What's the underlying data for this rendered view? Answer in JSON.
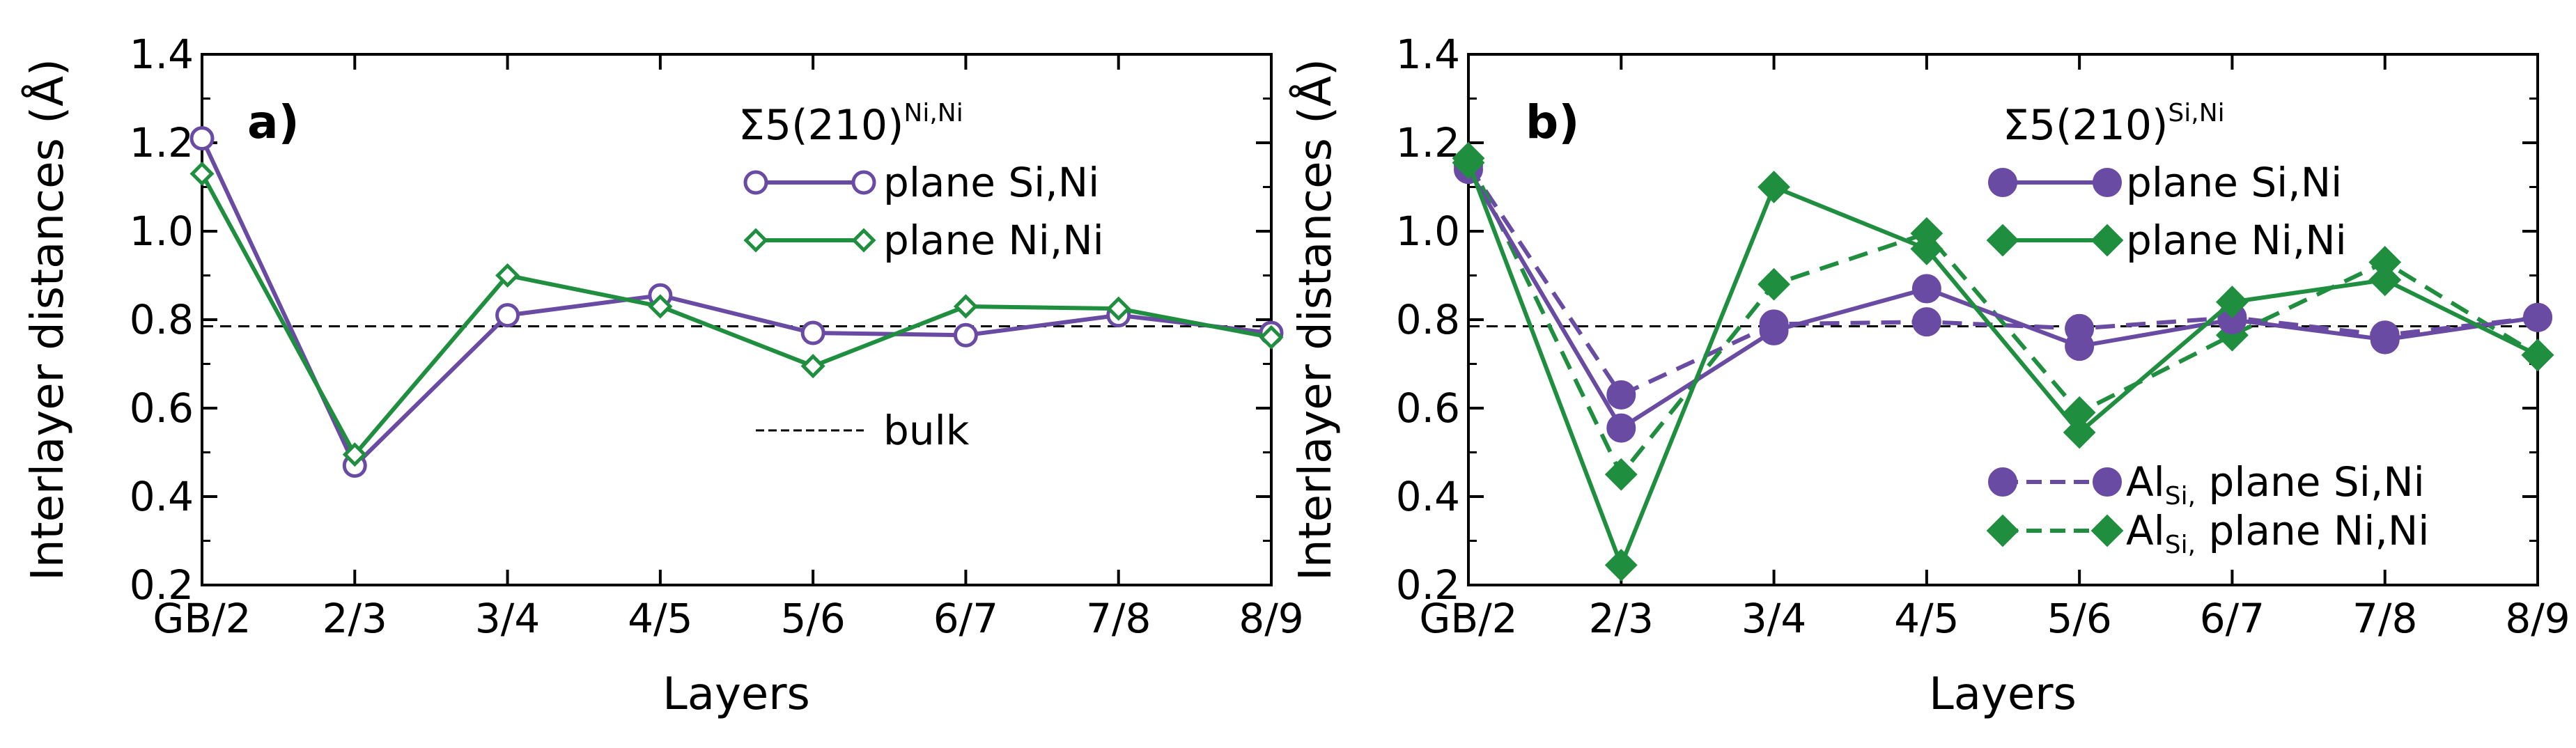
{
  "chart_data": [
    {
      "type": "line",
      "panel_label": "a)",
      "categories": [
        "GB/2",
        "2/3",
        "3/4",
        "4/5",
        "5/6",
        "6/7",
        "7/8",
        "8/9"
      ],
      "xlabel": "Layers",
      "ylabel": "Interlayer distances (Å)",
      "ylim": [
        0.2,
        1.4
      ],
      "yticks": [
        "0.2",
        "0.4",
        "0.6",
        "0.8",
        "1.0",
        "1.2",
        "1.4"
      ],
      "legend": {
        "title_base": "Σ5(210)",
        "title_sup": "Ni,Ni",
        "placement": "top-right"
      },
      "series": [
        {
          "name": "plane Si,Ni",
          "color": "#6a4ba3",
          "marker": "circle",
          "filled": false,
          "dashed": false,
          "values": [
            1.21,
            0.47,
            0.81,
            0.855,
            0.77,
            0.765,
            0.81,
            0.77
          ]
        },
        {
          "name": "plane Ni,Ni",
          "color": "#1f8f3f",
          "marker": "diamond",
          "filled": false,
          "dashed": false,
          "values": [
            1.13,
            0.495,
            0.9,
            0.83,
            0.695,
            0.83,
            0.825,
            0.76
          ]
        }
      ],
      "reference_line": {
        "name": "bulk",
        "value": 0.785
      }
    },
    {
      "type": "line",
      "panel_label": "b)",
      "categories": [
        "GB/2",
        "2/3",
        "3/4",
        "4/5",
        "5/6",
        "6/7",
        "7/8",
        "8/9"
      ],
      "xlabel": "Layers",
      "ylabel": "Interlayer distances (Å)",
      "ylim": [
        0.2,
        1.4
      ],
      "yticks": [
        "0.2",
        "0.4",
        "0.6",
        "0.8",
        "1.0",
        "1.2",
        "1.4"
      ],
      "legend": {
        "title_base": "Σ5(210)",
        "title_sup": "Si,Ni",
        "placement": "top-right"
      },
      "series": [
        {
          "name": "plane Si,Ni",
          "color": "#6a4ba3",
          "marker": "circle",
          "filled": true,
          "dashed": false,
          "values": [
            1.14,
            0.555,
            0.775,
            0.87,
            0.74,
            0.8,
            0.755,
            0.805
          ]
        },
        {
          "name": "plane Ni,Ni",
          "color": "#1f8f3f",
          "marker": "diamond",
          "filled": true,
          "dashed": false,
          "values": [
            1.155,
            0.245,
            1.1,
            0.96,
            0.545,
            0.84,
            0.89,
            0.72
          ]
        },
        {
          "name": "Al",
          "name_sub": "Si,",
          "name_rest": " plane Si,Ni",
          "color": "#6a4ba3",
          "marker": "circle",
          "filled": true,
          "dashed": true,
          "values": [
            1.15,
            0.63,
            0.79,
            0.795,
            0.78,
            0.805,
            0.765,
            0.805
          ]
        },
        {
          "name": "Al",
          "name_sub": "Si,",
          "name_rest": " plane Ni,Ni",
          "color": "#1f8f3f",
          "marker": "diamond",
          "filled": true,
          "dashed": true,
          "values": [
            1.165,
            0.45,
            0.88,
            0.995,
            0.59,
            0.765,
            0.93,
            0.72
          ]
        }
      ],
      "reference_line": {
        "value": 0.785
      }
    }
  ]
}
